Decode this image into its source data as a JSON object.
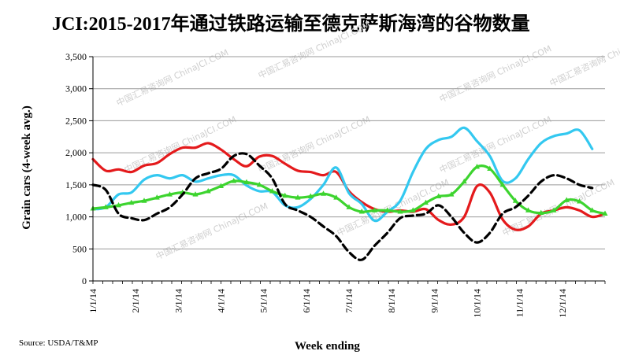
{
  "chart_data": {
    "type": "line",
    "title": "JCI:2015-2017年通过铁路运输至德克萨斯海湾的谷物数量",
    "xlabel": "Week ending",
    "ylabel": "Grain cars (4-week avg.)",
    "ylim": [
      0,
      3500
    ],
    "yticks": [
      "0",
      "500",
      "1,000",
      "1,500",
      "2,000",
      "2,500",
      "3,000",
      "3,500"
    ],
    "categories": [
      "1/1/14",
      "2/1/14",
      "3/1/14",
      "4/1/14",
      "5/1/14",
      "6/1/14",
      "7/1/14",
      "8/1/14",
      "9/1/14",
      "10/1/14",
      "11/1/14",
      "12/1/14"
    ],
    "grid": "horizontal",
    "legend": "none",
    "series": [
      {
        "color": "#e41a1c",
        "style": "solid",
        "marker": "none",
        "x": [
          0,
          0.3,
          0.6,
          0.9,
          1.2,
          1.5,
          1.8,
          2.1,
          2.4,
          2.7,
          3.0,
          3.3,
          3.6,
          3.9,
          4.2,
          4.5,
          4.8,
          5.1,
          5.4,
          5.7,
          6.0,
          6.3,
          6.6,
          6.9,
          7.2,
          7.5,
          7.8,
          8.1,
          8.4,
          8.7,
          9.0,
          9.3,
          9.6,
          9.9,
          10.2,
          10.5,
          10.8,
          11.1,
          11.4,
          11.7,
          12.0
        ],
        "values": [
          1900,
          1720,
          1740,
          1700,
          1800,
          1840,
          1980,
          2080,
          2080,
          2150,
          2050,
          1900,
          1790,
          1940,
          1950,
          1830,
          1720,
          1700,
          1650,
          1700,
          1400,
          1230,
          1120,
          1080,
          1100,
          1080,
          1120,
          950,
          880,
          1000,
          1480,
          1380,
          960,
          800,
          850,
          1050,
          1100,
          1150,
          1100,
          1000,
          1050
        ]
      },
      {
        "color": "#33c8f0",
        "style": "solid",
        "marker": "none",
        "x": [
          0,
          0.3,
          0.6,
          0.9,
          1.2,
          1.5,
          1.8,
          2.1,
          2.4,
          2.7,
          3.0,
          3.3,
          3.6,
          3.9,
          4.2,
          4.5,
          4.8,
          5.1,
          5.4,
          5.7,
          6.0,
          6.3,
          6.6,
          6.9,
          7.2,
          7.5,
          7.8,
          8.1,
          8.4,
          8.7,
          9.0,
          9.3,
          9.6,
          9.9,
          10.2,
          10.5,
          10.8,
          11.1,
          11.4,
          11.7
        ],
        "values": [
          1120,
          1150,
          1350,
          1380,
          1580,
          1650,
          1600,
          1650,
          1550,
          1600,
          1650,
          1650,
          1490,
          1400,
          1390,
          1180,
          1150,
          1280,
          1500,
          1770,
          1370,
          1200,
          940,
          1080,
          1250,
          1700,
          2060,
          2200,
          2250,
          2390,
          2180,
          1950,
          1560,
          1600,
          1900,
          2150,
          2260,
          2300,
          2350,
          2060
        ]
      },
      {
        "color": "#3dd42f",
        "style": "solid",
        "marker": "triangle",
        "x": [
          0,
          0.3,
          0.6,
          0.9,
          1.2,
          1.5,
          1.8,
          2.1,
          2.4,
          2.7,
          3.0,
          3.3,
          3.6,
          3.9,
          4.2,
          4.5,
          4.8,
          5.1,
          5.4,
          5.7,
          6.0,
          6.3,
          6.6,
          6.9,
          7.2,
          7.5,
          7.8,
          8.1,
          8.4,
          8.7,
          9.0,
          9.3,
          9.6,
          9.9,
          10.2,
          10.5,
          10.8,
          11.1,
          11.4,
          11.7,
          12.0
        ],
        "values": [
          1130,
          1150,
          1180,
          1220,
          1250,
          1300,
          1350,
          1380,
          1350,
          1400,
          1480,
          1560,
          1540,
          1500,
          1400,
          1330,
          1300,
          1320,
          1360,
          1300,
          1150,
          1080,
          1100,
          1100,
          1080,
          1100,
          1220,
          1320,
          1350,
          1550,
          1780,
          1750,
          1500,
          1250,
          1100,
          1060,
          1100,
          1260,
          1240,
          1100,
          1050
        ]
      },
      {
        "color": "#000000",
        "style": "dashed",
        "marker": "none",
        "x": [
          0,
          0.3,
          0.6,
          0.9,
          1.2,
          1.5,
          1.8,
          2.1,
          2.4,
          2.7,
          3.0,
          3.3,
          3.6,
          3.9,
          4.2,
          4.5,
          4.8,
          5.1,
          5.4,
          5.7,
          6.0,
          6.3,
          6.6,
          6.9,
          7.2,
          7.5,
          7.8,
          8.1,
          8.4,
          8.7,
          9.0,
          9.3,
          9.6,
          9.9,
          10.2,
          10.5,
          10.8,
          11.1,
          11.4,
          11.7
        ],
        "values": [
          1500,
          1420,
          1050,
          980,
          950,
          1050,
          1150,
          1350,
          1600,
          1680,
          1750,
          1950,
          1980,
          1800,
          1600,
          1200,
          1100,
          1000,
          850,
          700,
          450,
          330,
          550,
          750,
          980,
          1020,
          1050,
          1180,
          1000,
          750,
          600,
          750,
          1050,
          1150,
          1330,
          1550,
          1650,
          1600,
          1500,
          1450
        ]
      }
    ]
  },
  "source_note": "Source:  USDA/T&MP",
  "watermark": "中国汇易咨询网 ChinaJCI.COM"
}
